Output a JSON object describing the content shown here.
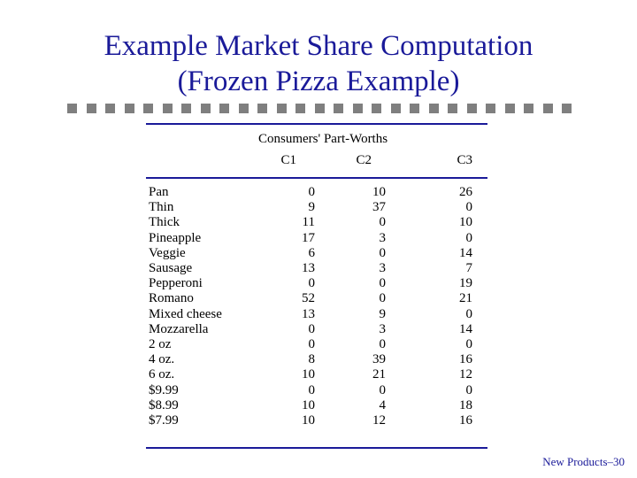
{
  "title": {
    "line1": "Example Market Share Computation",
    "line2": "(Frozen Pizza Example)"
  },
  "table": {
    "header": "Consumers' Part-Worths",
    "columns": [
      "C1",
      "C2",
      "C3"
    ],
    "rows": [
      {
        "label": "Pan",
        "values": [
          "0",
          "10",
          "26"
        ]
      },
      {
        "label": "Thin",
        "values": [
          "9",
          "37",
          "0"
        ]
      },
      {
        "label": "Thick",
        "values": [
          "11",
          "0",
          "10"
        ]
      },
      {
        "label": "Pineapple",
        "values": [
          "17",
          "3",
          "0"
        ]
      },
      {
        "label": "Veggie",
        "values": [
          "6",
          "0",
          "14"
        ]
      },
      {
        "label": "Sausage",
        "values": [
          "13",
          "3",
          "7"
        ]
      },
      {
        "label": "Pepperoni",
        "values": [
          "0",
          "0",
          "19"
        ]
      },
      {
        "label": "Romano",
        "values": [
          "52",
          "0",
          "21"
        ]
      },
      {
        "label": "Mixed cheese",
        "values": [
          "13",
          "9",
          "0"
        ]
      },
      {
        "label": "Mozzarella",
        "values": [
          "0",
          "3",
          "14"
        ]
      },
      {
        "label": "2 oz",
        "values": [
          "0",
          "0",
          "0"
        ]
      },
      {
        "label": "4 oz.",
        "values": [
          "8",
          "39",
          "16"
        ]
      },
      {
        "label": "6 oz.",
        "values": [
          "10",
          "21",
          "12"
        ]
      },
      {
        "label": "$9.99",
        "values": [
          "0",
          "0",
          "0"
        ]
      },
      {
        "label": "$8.99",
        "values": [
          "10",
          "4",
          "18"
        ]
      },
      {
        "label": "$7.99",
        "values": [
          "10",
          "12",
          "16"
        ]
      }
    ]
  },
  "footer": "New Products–30",
  "colors": {
    "title": "#1a1a99",
    "rule": "#1a1a99",
    "squares": "#7f7f7f"
  }
}
